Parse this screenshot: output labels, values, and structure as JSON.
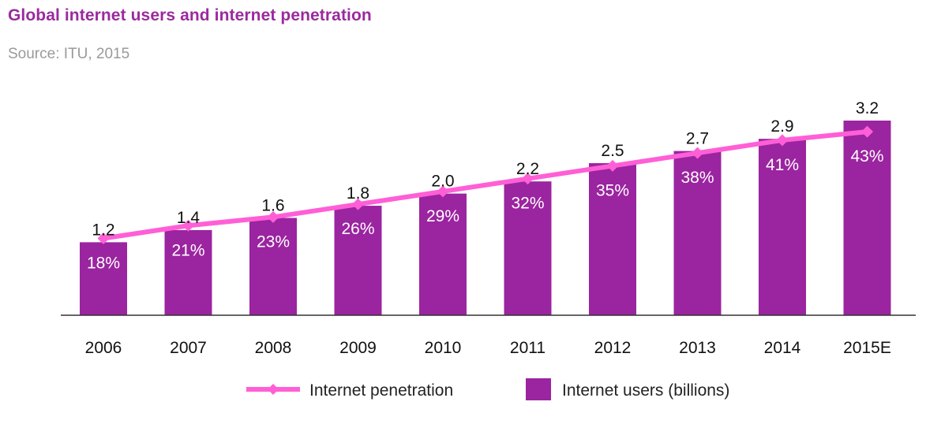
{
  "title": "Global internet users and internet penetration",
  "subtitle": "Source: ITU, 2015",
  "colors": {
    "bar": "#9b24a0",
    "line": "#ff5fd6",
    "title": "#9b2a9e",
    "axis": "#333333"
  },
  "chart_data": {
    "type": "bar",
    "title": "Global internet users and internet penetration",
    "categories": [
      "2006",
      "2007",
      "2008",
      "2009",
      "2010",
      "2011",
      "2012",
      "2013",
      "2014",
      "2015E"
    ],
    "series": [
      {
        "name": "Internet users (billions)",
        "type": "bar",
        "values": [
          1.2,
          1.4,
          1.6,
          1.8,
          2.0,
          2.2,
          2.5,
          2.7,
          2.9,
          3.2
        ],
        "labels": [
          "1.2",
          "1.4",
          "1.6",
          "1.8",
          "2.0",
          "2.2",
          "2.5",
          "2.7",
          "2.9",
          "3.2"
        ]
      },
      {
        "name": "Internet penetration",
        "type": "line",
        "values": [
          18,
          21,
          23,
          26,
          29,
          32,
          35,
          38,
          41,
          43
        ],
        "labels": [
          "18%",
          "21%",
          "23%",
          "26%",
          "29%",
          "32%",
          "35%",
          "38%",
          "41%",
          "43%"
        ]
      }
    ],
    "ylim_users": [
      0,
      3.2
    ],
    "ylim_penetration": [
      0,
      60
    ],
    "legend": [
      "Internet penetration",
      "Internet users (billions)"
    ],
    "legend_position": "bottom"
  }
}
